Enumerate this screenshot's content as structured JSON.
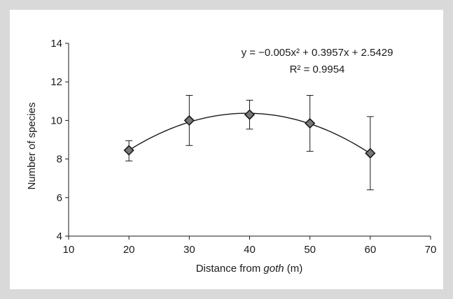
{
  "chart_data": {
    "type": "scatter",
    "xlabel": "Distance from goth (m)",
    "ylabel": "Number of species",
    "xlim": [
      10,
      70
    ],
    "ylim": [
      4,
      14
    ],
    "x_ticks": [
      10,
      20,
      30,
      40,
      50,
      60,
      70
    ],
    "y_ticks": [
      4,
      6,
      8,
      10,
      12,
      14
    ],
    "grid": false,
    "marker": "diamond",
    "series": [
      {
        "x": [
          20,
          30,
          40,
          50,
          60
        ],
        "y": [
          8.45,
          10.0,
          10.3,
          9.85,
          8.3
        ],
        "err_low": [
          7.9,
          8.7,
          9.55,
          8.4,
          6.4
        ],
        "err_high": [
          8.95,
          11.3,
          11.05,
          11.3,
          10.2
        ]
      }
    ],
    "trendline": {
      "type": "polynomial",
      "coefficients": {
        "a": -0.005,
        "b": 0.3957,
        "c": 2.5429
      },
      "equation": "y = −0.005x² + 0.3957x + 2.5429",
      "r2": "R² = 0.9954"
    }
  }
}
